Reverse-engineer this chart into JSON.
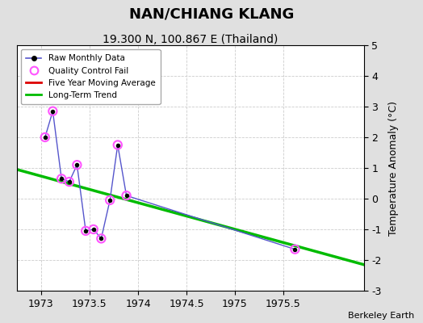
{
  "title": "NAN/CHIANG KLANG",
  "subtitle": "19.300 N, 100.867 E (Thailand)",
  "watermark": "Berkeley Earth",
  "xlim": [
    1972.75,
    1976.33
  ],
  "ylim": [
    -3,
    5
  ],
  "yticks": [
    -3,
    -2,
    -1,
    0,
    1,
    2,
    3,
    4,
    5
  ],
  "xticks": [
    1973,
    1973.5,
    1974,
    1974.5,
    1975,
    1975.5
  ],
  "xtick_labels": [
    "1973",
    "1973.5",
    "1974",
    "1974.5",
    "1975",
    "1975.5"
  ],
  "raw_x": [
    1973.04,
    1973.12,
    1973.21,
    1973.29,
    1973.37,
    1973.46,
    1973.54,
    1973.62,
    1973.71,
    1973.79,
    1973.88,
    1975.62
  ],
  "raw_y": [
    2.0,
    2.85,
    0.65,
    0.55,
    1.1,
    -1.05,
    -1.0,
    -1.3,
    -0.05,
    1.75,
    0.1,
    -1.65
  ],
  "qc_fail_x": [
    1973.04,
    1973.12,
    1973.21,
    1973.29,
    1973.37,
    1973.46,
    1973.54,
    1973.62,
    1973.71,
    1973.79,
    1973.88,
    1975.62
  ],
  "qc_fail_y": [
    2.0,
    2.85,
    0.65,
    0.55,
    1.1,
    -1.05,
    -1.0,
    -1.3,
    -0.05,
    1.75,
    0.1,
    -1.65
  ],
  "trend_x": [
    1972.75,
    1976.33
  ],
  "trend_y": [
    0.95,
    -2.15
  ],
  "bg_color": "#e0e0e0",
  "plot_bg_color": "#ffffff",
  "raw_line_color": "#5555cc",
  "raw_marker_color": "black",
  "qc_marker_color": "#ff55ff",
  "trend_color": "#00bb00",
  "mavg_color": "#dd0000",
  "ylabel": "Temperature Anomaly (°C)",
  "title_fontsize": 13,
  "subtitle_fontsize": 10,
  "tick_fontsize": 9
}
